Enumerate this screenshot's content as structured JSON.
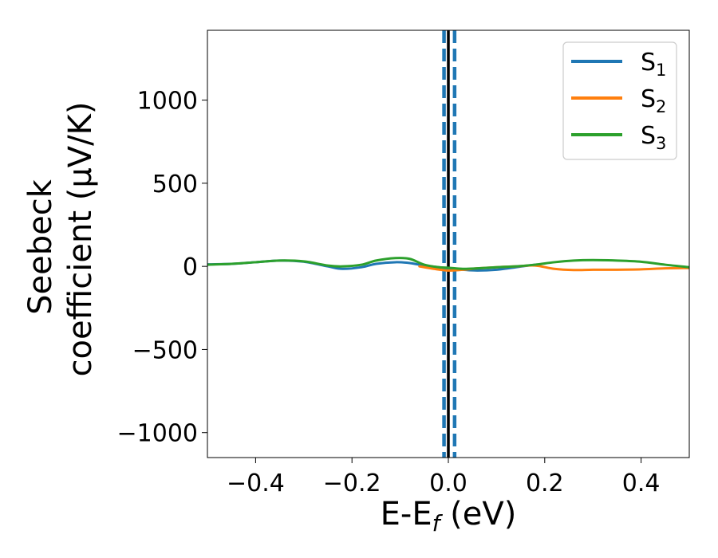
{
  "chart_data": {
    "type": "line",
    "title": "",
    "xlabel": "E-E",
    "xlabel_sub": "f",
    "xlabel_unit": " (eV)",
    "ylabel_line1": "Seebeck",
    "ylabel_line2": "coefficient  (μV/K)",
    "xlim": [
      -0.5,
      0.5
    ],
    "ylim": [
      -1150,
      1420
    ],
    "xticks": [
      -0.4,
      -0.2,
      0.0,
      0.2,
      0.4
    ],
    "xtick_labels": [
      "−0.4",
      "−0.2",
      "0.0",
      "0.2",
      "0.4"
    ],
    "yticks": [
      1000,
      500,
      0,
      -500,
      -1000
    ],
    "ytick_labels": [
      "1000",
      "500",
      "0",
      "−500",
      "−1000"
    ],
    "grid": false,
    "legend_position": "top-right",
    "vertical_lines": [
      {
        "x": 0.0,
        "style": "solid",
        "color": "#000000"
      },
      {
        "x": -0.009,
        "style": "dashed",
        "color": "#1f77b4"
      },
      {
        "x": 0.013,
        "style": "dashed",
        "color": "#1f77b4"
      }
    ],
    "series": [
      {
        "name": "S",
        "sub": "1",
        "color": "#1f77b4",
        "x": [
          -0.5,
          -0.45,
          -0.4,
          -0.35,
          -0.3,
          -0.25,
          -0.22,
          -0.18,
          -0.15,
          -0.11,
          -0.08,
          -0.05,
          -0.02,
          0.0,
          0.03,
          0.06,
          0.1,
          0.14,
          0.18
        ],
        "y": [
          12,
          15,
          25,
          35,
          28,
          0,
          -15,
          -5,
          15,
          25,
          20,
          5,
          -5,
          -12,
          -20,
          -25,
          -20,
          -5,
          10
        ]
      },
      {
        "name": "S",
        "sub": "2",
        "color": "#ff7f0e",
        "x": [
          -0.06,
          -0.03,
          0.0,
          0.03,
          0.06,
          0.1,
          0.14,
          0.18,
          0.22,
          0.26,
          0.3,
          0.35,
          0.4,
          0.45,
          0.5
        ],
        "y": [
          0,
          -15,
          -25,
          -20,
          -12,
          -5,
          0,
          5,
          -15,
          -22,
          -20,
          -20,
          -18,
          -12,
          -10
        ]
      },
      {
        "name": "S",
        "sub": "3",
        "color": "#2ca02c",
        "x": [
          -0.5,
          -0.45,
          -0.4,
          -0.35,
          -0.3,
          -0.25,
          -0.22,
          -0.18,
          -0.15,
          -0.11,
          -0.08,
          -0.05,
          -0.02,
          0.0,
          0.03,
          0.06,
          0.1,
          0.14,
          0.18,
          0.22,
          0.26,
          0.3,
          0.35,
          0.4,
          0.45,
          0.5
        ],
        "y": [
          10,
          15,
          25,
          35,
          30,
          5,
          0,
          10,
          35,
          50,
          45,
          10,
          -5,
          -8,
          -15,
          -12,
          -5,
          0,
          10,
          25,
          35,
          38,
          35,
          28,
          10,
          -5
        ]
      }
    ]
  }
}
